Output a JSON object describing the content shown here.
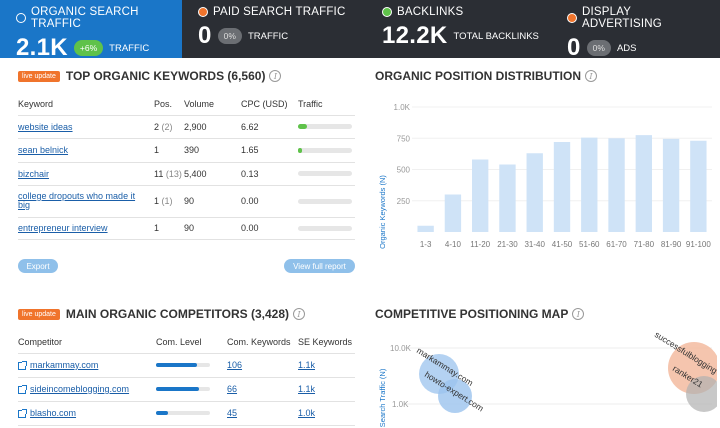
{
  "metrics": {
    "organic": {
      "label": "Organic Search Traffic",
      "value": "2.1K",
      "change": "+6%",
      "sublabel": "TRAFFIC",
      "color": "#1a76c8",
      "dot_color": "#1a76c8"
    },
    "paid": {
      "label": "Paid Search Traffic",
      "value": "0",
      "change": "0%",
      "sublabel": "TRAFFIC",
      "dot_color": "#f0742c"
    },
    "backlinks": {
      "label": "Backlinks",
      "value": "12.2K",
      "sublabel": "TOTAL BACKLINKS",
      "dot_color": "#5fc24a"
    },
    "display": {
      "label": "Display Advertising",
      "value": "0",
      "change": "0%",
      "sublabel": "ADS",
      "dot_color": "#f0742c"
    }
  },
  "keywords_panel": {
    "badge": "live update",
    "title": "TOP ORGANIC KEYWORDS (6,560)",
    "columns": [
      "Keyword",
      "Pos.",
      "Volume",
      "CPC (USD)",
      "Traffic"
    ],
    "rows": [
      {
        "keyword": "website ideas",
        "pos": "2",
        "pos_prev": "(2)",
        "volume": "2,900",
        "cpc": "6.62",
        "traffic_pct": 16
      },
      {
        "keyword": "sean belnick",
        "pos": "1",
        "pos_prev": "",
        "volume": "390",
        "cpc": "1.65",
        "traffic_pct": 8
      },
      {
        "keyword": "bizchair",
        "pos": "11",
        "pos_prev": "(13)",
        "volume": "5,400",
        "cpc": "0.13",
        "traffic_pct": 0
      },
      {
        "keyword": "college dropouts who made it big",
        "pos": "1",
        "pos_prev": "(1)",
        "volume": "90",
        "cpc": "0.00",
        "traffic_pct": 0
      },
      {
        "keyword": "entrepreneur interview",
        "pos": "1",
        "pos_prev": "",
        "volume": "90",
        "cpc": "0.00",
        "traffic_pct": 0
      }
    ],
    "export_label": "Export",
    "view_full_label": "View full report"
  },
  "position_panel": {
    "title": "ORGANIC POSITION DISTRIBUTION"
  },
  "chart_data": {
    "type": "bar",
    "categories": [
      "1-3",
      "4-10",
      "11-20",
      "21-30",
      "31-40",
      "41-50",
      "51-60",
      "61-70",
      "71-80",
      "81-90",
      "91-100"
    ],
    "values": [
      50,
      300,
      580,
      540,
      630,
      720,
      755,
      750,
      775,
      745,
      730
    ],
    "title": "",
    "xlabel": "",
    "ylabel": "Organic Keywords (N)",
    "ylim": [
      0,
      1000
    ],
    "yticks": [
      "250",
      "500",
      "750",
      "1.0K"
    ],
    "bar_color": "#cfe3f7"
  },
  "competitors_panel": {
    "badge": "live update",
    "title": "MAIN ORGANIC COMPETITORS (3,428)",
    "columns": [
      "Competitor",
      "Com. Level",
      "Com. Keywords",
      "SE Keywords"
    ],
    "rows": [
      {
        "domain": "markammay.com",
        "level_pct": 75,
        "com_keywords": "106",
        "se_keywords": "1.1k"
      },
      {
        "domain": "sideincomeblogging.com",
        "level_pct": 80,
        "com_keywords": "66",
        "se_keywords": "1.1k"
      },
      {
        "domain": "blasho.com",
        "level_pct": 22,
        "com_keywords": "45",
        "se_keywords": "1.0k"
      }
    ]
  },
  "positioning_panel": {
    "title": "COMPETITIVE POSITIONING MAP",
    "ylabel": "Search Traffic (N)",
    "yticks": [
      "10.0K",
      "1.0K"
    ],
    "bubbles": [
      {
        "label": "markammay.com",
        "color": "#9bc3ee"
      },
      {
        "label": "howto-expert.com",
        "color": "#9bc3ee"
      },
      {
        "label": "successfulblogging",
        "color": "#f2b79a"
      },
      {
        "label": "ranker21",
        "color": "#b0b0b0"
      }
    ]
  }
}
